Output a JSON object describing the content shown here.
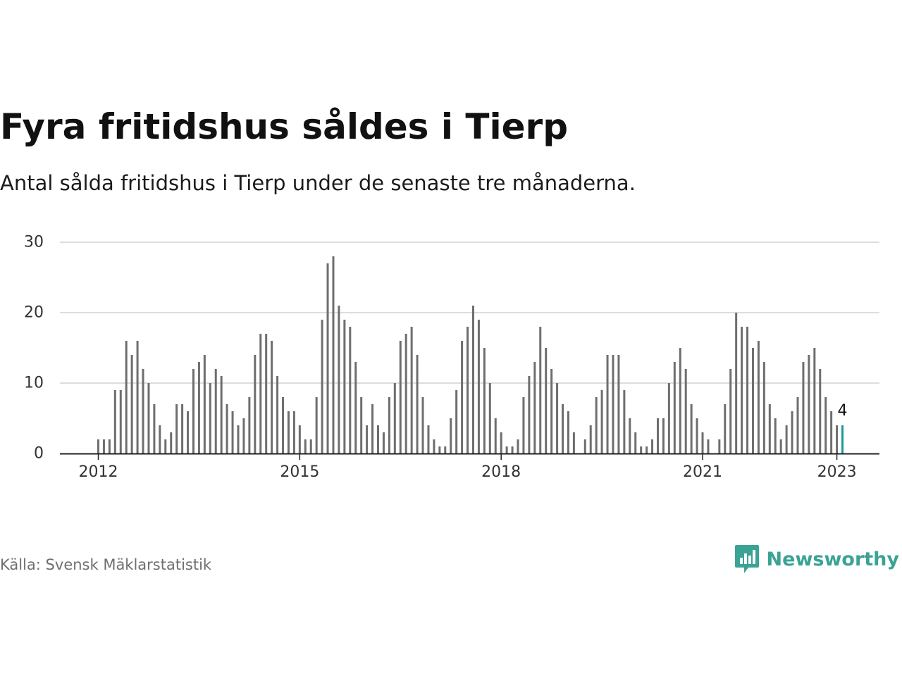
{
  "title": "Fyra fritidshus såldes i Tierp",
  "subtitle": "Antal sålda fritidshus i Tierp under de senaste tre månaderna.",
  "source": "Källa: Svensk Mäklarstatistik",
  "brand": {
    "name": "Newsworthy",
    "icon": "newsworthy-logo-icon",
    "color": "#3aa394"
  },
  "colors": {
    "bar": "#6e6e6e",
    "highlight": "#1a9a9a",
    "grid": "#dddddd",
    "axis": "#222222"
  },
  "chart_data": {
    "type": "bar",
    "x_start": "2012-01",
    "x_interval": "month",
    "values": [
      2,
      2,
      2,
      9,
      9,
      16,
      14,
      16,
      12,
      10,
      7,
      4,
      2,
      3,
      7,
      7,
      6,
      12,
      13,
      14,
      10,
      12,
      11,
      7,
      6,
      4,
      5,
      8,
      14,
      17,
      17,
      16,
      11,
      8,
      6,
      6,
      4,
      2,
      2,
      8,
      19,
      27,
      28,
      21,
      19,
      18,
      13,
      8,
      4,
      7,
      4,
      3,
      8,
      10,
      16,
      17,
      18,
      14,
      8,
      4,
      2,
      1,
      1,
      5,
      9,
      16,
      18,
      21,
      19,
      15,
      10,
      5,
      3,
      1,
      1,
      2,
      8,
      11,
      13,
      18,
      15,
      12,
      10,
      7,
      6,
      3,
      0,
      2,
      4,
      8,
      9,
      14,
      14,
      14,
      9,
      5,
      3,
      1,
      1,
      2,
      5,
      5,
      10,
      13,
      15,
      12,
      7,
      5,
      3,
      2,
      0,
      2,
      7,
      12,
      20,
      18,
      18,
      15,
      16,
      13,
      7,
      5,
      2,
      4,
      6,
      8,
      13,
      14,
      15,
      12,
      8,
      6,
      4,
      4
    ],
    "highlight_index": 133,
    "highlight_label": "4",
    "y_ticks": [
      "0",
      "10",
      "20",
      "30"
    ],
    "ylim": [
      0,
      30
    ],
    "x_ticks": [
      {
        "label": "2012",
        "month_index": 0
      },
      {
        "label": "2015",
        "month_index": 36
      },
      {
        "label": "2018",
        "month_index": 72
      },
      {
        "label": "2021",
        "month_index": 108
      },
      {
        "label": "2023",
        "month_index": 132
      }
    ],
    "grid": true,
    "legend": "none"
  }
}
